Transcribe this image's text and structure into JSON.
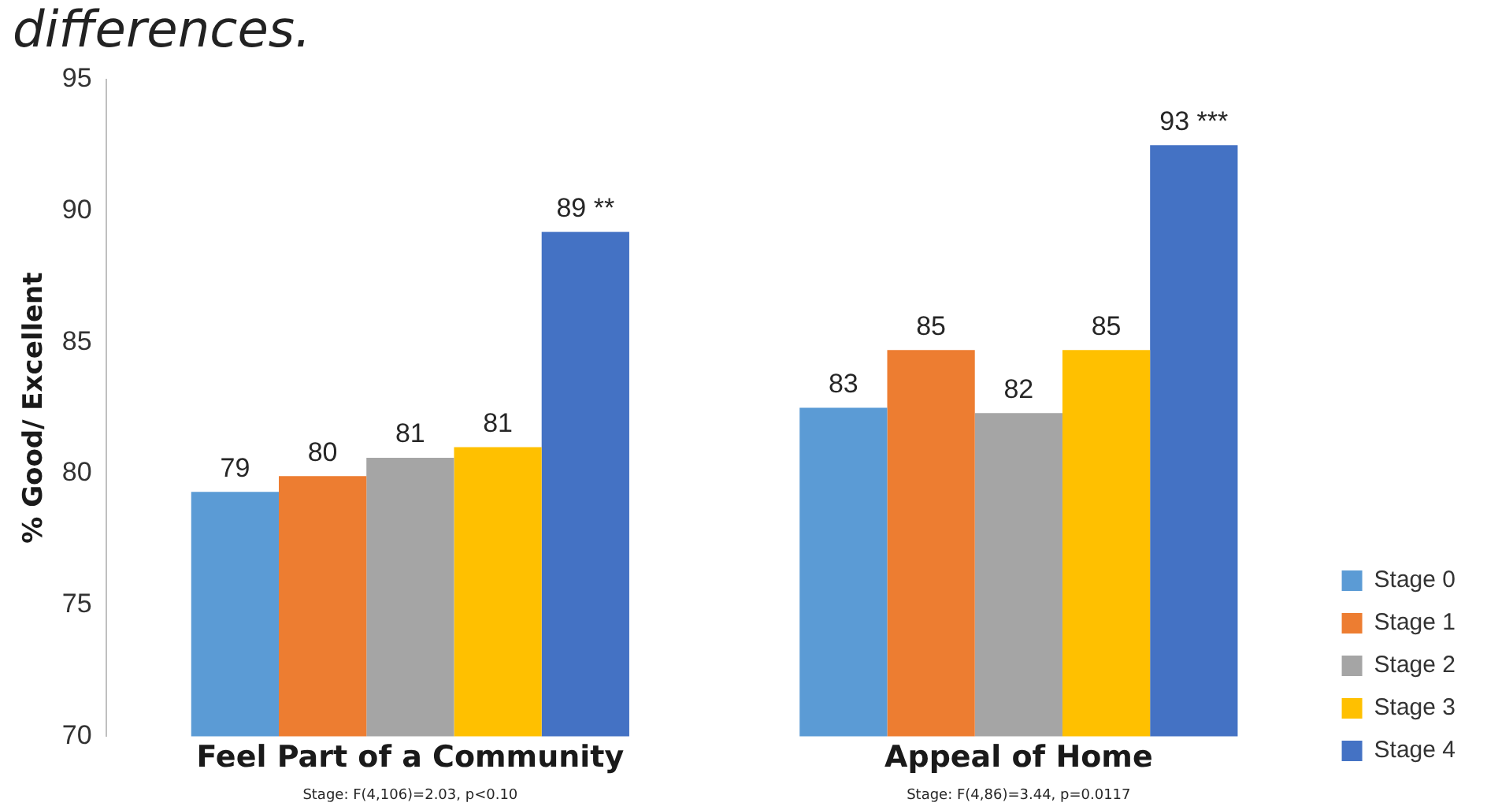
{
  "chart_data": {
    "type": "bar",
    "title": "differences.",
    "ylabel": "% Good/ Excellent",
    "categories": [
      "Feel Part of a Community",
      "Appeal of Home"
    ],
    "series": [
      {
        "name": "Stage 0",
        "color": "#5b9bd5",
        "values": [
          79.3,
          82.5
        ],
        "value_labels": [
          "79",
          "83"
        ]
      },
      {
        "name": "Stage 1",
        "color": "#ed7d31",
        "values": [
          79.9,
          84.7
        ],
        "value_labels": [
          "80",
          "85"
        ]
      },
      {
        "name": "Stage 2",
        "color": "#a5a5a5",
        "values": [
          80.6,
          82.3
        ],
        "value_labels": [
          "81",
          "82"
        ]
      },
      {
        "name": "Stage 3",
        "color": "#ffc000",
        "values": [
          81.0,
          84.7
        ],
        "value_labels": [
          "81",
          "85"
        ]
      },
      {
        "name": "Stage 4",
        "color": "#4472c4",
        "values": [
          89.2,
          92.5
        ],
        "value_labels": [
          "89 **",
          "93 ***"
        ]
      }
    ],
    "ylim": [
      70,
      95
    ],
    "yticks": [
      70,
      75,
      80,
      85,
      90,
      95
    ],
    "grid": false,
    "legend": "bottom right",
    "annotations": [
      "Stage: F(4,106)=2.03, p<0.10",
      "Stage: F(4,86)=3.44, p=0.0117"
    ]
  }
}
